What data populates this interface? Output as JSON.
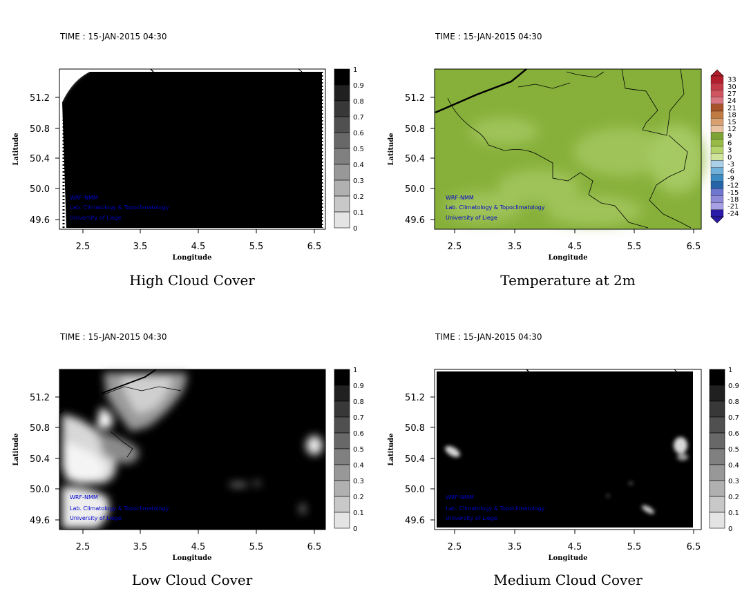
{
  "chart_data": [
    {
      "type": "heatmap",
      "time_label": "TIME : 15-JAN-2015 04:30",
      "title": "High Cloud Cover",
      "xlabel": "Longitude",
      "ylabel": "Latitude",
      "xticks": [
        "2.5",
        "3.5",
        "4.5",
        "5.5",
        "6.5"
      ],
      "yticks": [
        "51.2",
        "50.8",
        "50.4",
        "50.0",
        "49.6"
      ],
      "xlim": [
        2.2,
        6.6
      ],
      "ylim": [
        49.5,
        51.5
      ],
      "colorbar_labels": [
        "1",
        "0.9",
        "0.8",
        "0.7",
        "0.6",
        "0.5",
        "0.4",
        "0.3",
        "0.2",
        "0.1",
        "0"
      ],
      "credits": [
        "WRF-NMM",
        "Lab. Climatology & Topoclimatology",
        "University of Liege"
      ],
      "field": "near-total cover (~1.0) over the domain; clear (~0) in the north-west corner"
    },
    {
      "type": "heatmap",
      "time_label": "TIME : 15-JAN-2015 04:30",
      "title": "Temperature at 2m",
      "xlabel": "Longitude",
      "ylabel": "Latitude",
      "xticks": [
        "2.5",
        "3.5",
        "4.5",
        "5.5",
        "6.5"
      ],
      "yticks": [
        "51.2",
        "50.8",
        "50.4",
        "50.0",
        "49.6"
      ],
      "xlim": [
        2.2,
        6.6
      ],
      "ylim": [
        49.5,
        51.5
      ],
      "colorbar_labels": [
        "33",
        "30",
        "27",
        "24",
        "21",
        "18",
        "15",
        "12",
        "9",
        "6",
        "3",
        "0",
        "-3",
        "-6",
        "-9",
        "-12",
        "-15",
        "-18",
        "-21",
        "-24"
      ],
      "credits": [
        "WRF-NMM",
        "Lab. Climatology & Topoclimatology",
        "University of Liege"
      ],
      "field": "mostly 6 to 9; warmer 9 to 12 patches in the centre and south-east"
    },
    {
      "type": "heatmap",
      "time_label": "TIME : 15-JAN-2015 04:30",
      "title": "Low Cloud Cover",
      "xlabel": "Longitude",
      "ylabel": "Latitude",
      "xticks": [
        "2.5",
        "3.5",
        "4.5",
        "5.5",
        "6.5"
      ],
      "yticks": [
        "51.2",
        "50.8",
        "50.4",
        "50.0",
        "49.6"
      ],
      "xlim": [
        2.2,
        6.6
      ],
      "ylim": [
        49.5,
        51.5
      ],
      "colorbar_labels": [
        "1",
        "0.9",
        "0.8",
        "0.7",
        "0.6",
        "0.5",
        "0.4",
        "0.3",
        "0.2",
        "0.1",
        "0"
      ],
      "credits": [
        "WRF-NMM",
        "Lab. Climatology & Topoclimatology",
        "University of Liege"
      ],
      "field": "full cover (~1.0) in the east; broken to clear (0 to 0.5) in the west and north"
    },
    {
      "type": "heatmap",
      "time_label": "TIME : 15-JAN-2015 04:30",
      "title": "Medium Cloud Cover",
      "xlabel": "Longitude",
      "ylabel": "Latitude",
      "xticks": [
        "2.5",
        "3.5",
        "4.5",
        "5.5",
        "6.5"
      ],
      "yticks": [
        "51.2",
        "50.8",
        "50.4",
        "50.0",
        "49.6"
      ],
      "xlim": [
        2.2,
        6.6
      ],
      "ylim": [
        49.5,
        51.5
      ],
      "colorbar_labels": [
        "1",
        "0.9",
        "0.8",
        "0.7",
        "0.6",
        "0.5",
        "0.4",
        "0.3",
        "0.2",
        "0.1",
        "0"
      ],
      "credits": [
        "WRF-NMM",
        "Lab. Climatology & Topoclimatology",
        "University of Liege"
      ],
      "field": "near-total cover (~1.0); a few small clear patches in the west and east"
    }
  ],
  "colors": {
    "cloud_scale": [
      "#000000",
      "#202020",
      "#383838",
      "#505050",
      "#686868",
      "#808080",
      "#989898",
      "#b0b0b0",
      "#c8c8c8",
      "#e4e4e4",
      "#ffffff"
    ],
    "temp_scale": [
      "#b21e2b",
      "#c33a47",
      "#cf5561",
      "#d87783",
      "#a8542a",
      "#c07a44",
      "#d9a070",
      "#e9c2a2",
      "#7da334",
      "#97bb46",
      "#b4d36c",
      "#d1e49c",
      "#a9d0e8",
      "#70b1d9",
      "#3d8bc3",
      "#2565a8",
      "#6e76cf",
      "#8d8ad9",
      "#a7a0e4",
      "#2a1aa8"
    ],
    "credit_text": "#0000cc",
    "temp_field_base": "#86b03a",
    "temp_field_warm": "#a8ca64"
  }
}
